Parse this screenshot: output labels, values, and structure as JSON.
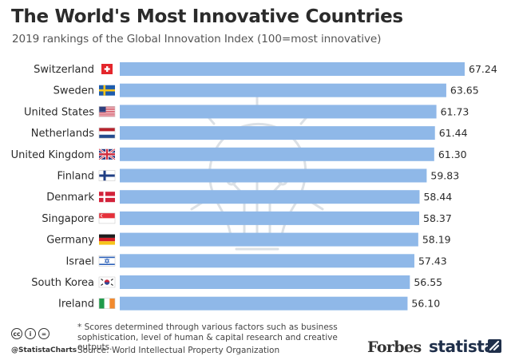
{
  "chart_data": {
    "type": "bar",
    "orientation": "horizontal",
    "title": "The World's Most Innovative Countries",
    "subtitle": "2019 rankings of the Global Innovation Index (100=most innovative)",
    "categories": [
      "Switzerland",
      "Sweden",
      "United States",
      "Netherlands",
      "United Kingdom",
      "Finland",
      "Denmark",
      "Singapore",
      "Germany",
      "Israel",
      "South Korea",
      "Ireland"
    ],
    "values": [
      67.24,
      63.65,
      61.73,
      61.44,
      61.3,
      59.83,
      58.44,
      58.37,
      58.19,
      57.43,
      56.55,
      56.1
    ],
    "value_labels": [
      "67.24",
      "63.65",
      "61.73",
      "61.44",
      "61.30",
      "59.83",
      "58.44",
      "58.37",
      "58.19",
      "57.43",
      "56.55",
      "56.10"
    ],
    "xlim": [
      0,
      67.24
    ],
    "bar_color": "#8fb8e8",
    "grid": false,
    "legend": "none"
  },
  "flags": [
    "swiss-flag-icon",
    "sweden-flag-icon",
    "usa-flag-icon",
    "netherlands-flag-icon",
    "uk-flag-icon",
    "finland-flag-icon",
    "denmark-flag-icon",
    "singapore-flag-icon",
    "germany-flag-icon",
    "israel-flag-icon",
    "south-korea-flag-icon",
    "ireland-flag-icon"
  ],
  "footer": {
    "note": "* Scores determined through various factors such as business sophistication, level of human & capital research and creative outputs.",
    "source": "Source: World Intellectual Property Organization",
    "handle": "@StatistaCharts",
    "cc_icons": [
      "cc",
      "i",
      "="
    ],
    "logo_forbes": "Forbes",
    "logo_statista": "statista"
  }
}
